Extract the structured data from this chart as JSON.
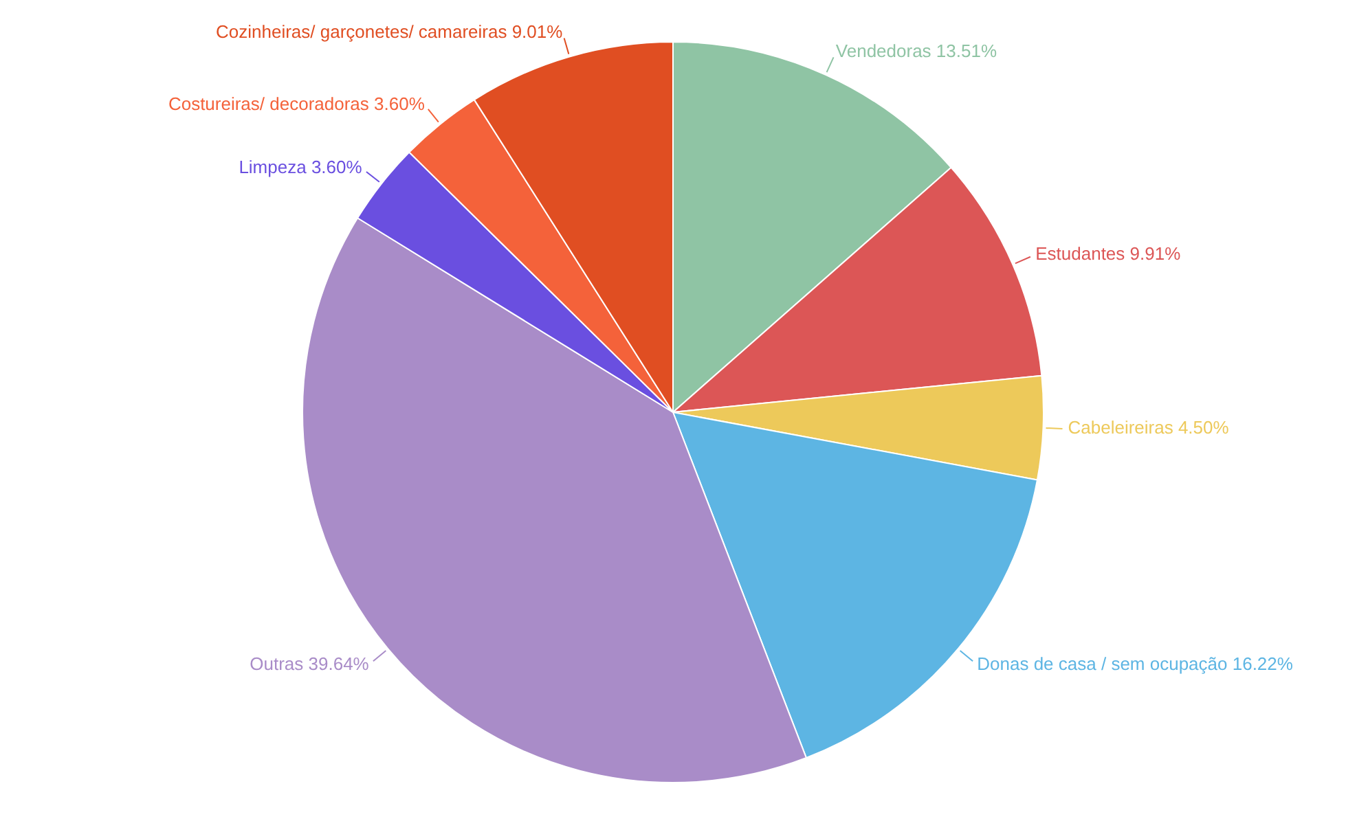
{
  "chart_data": {
    "type": "pie",
    "categories": [
      "Vendedoras",
      "Estudantes",
      "Cabeleireiras",
      "Donas de casa / sem ocupação",
      "Outras",
      "Limpeza",
      "Costureiras/ decoradoras",
      "Cozinheiras/ garçonetes/ camareiras"
    ],
    "values": [
      13.51,
      9.91,
      4.5,
      16.22,
      39.64,
      3.6,
      3.6,
      9.01
    ],
    "value_labels": [
      "13.51%",
      "9.91%",
      "4.50%",
      "16.22%",
      "39.64%",
      "3.60%",
      "3.60%",
      "9.01%"
    ],
    "colors": [
      "#8fc4a4",
      "#dc5656",
      "#edc95a",
      "#5db5e3",
      "#a98cc8",
      "#6a4fe0",
      "#f4623a",
      "#e04e22"
    ]
  }
}
